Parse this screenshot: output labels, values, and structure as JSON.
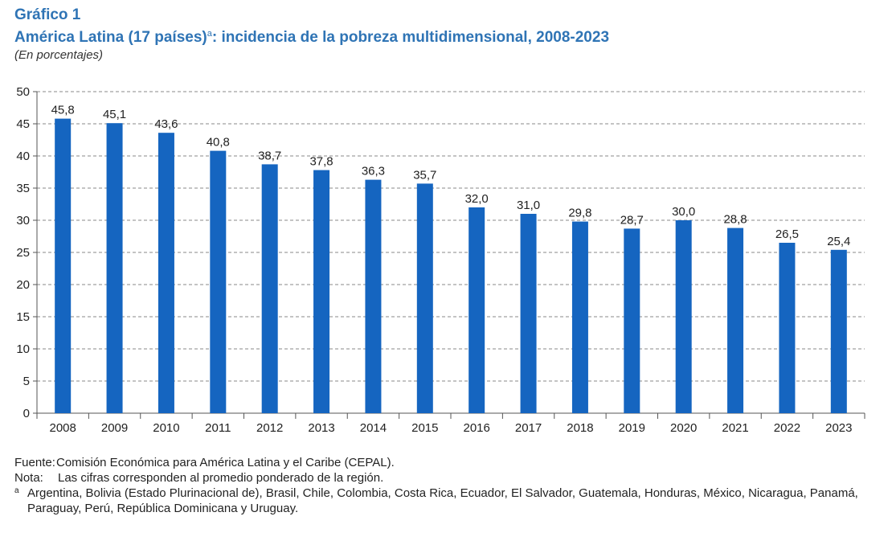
{
  "header": {
    "figure_number": "Gráfico 1",
    "title_main": "América Latina (17 países)",
    "title_sup": "a",
    "title_rest": ": incidencia de la pobreza multidimensional, 2008-2023",
    "subtitle": "(En porcentajes)"
  },
  "chart_data": {
    "type": "bar",
    "categories": [
      "2008",
      "2009",
      "2010",
      "2011",
      "2012",
      "2013",
      "2014",
      "2015",
      "2016",
      "2017",
      "2018",
      "2019",
      "2020",
      "2021",
      "2022",
      "2023"
    ],
    "values": [
      45.8,
      45.1,
      43.6,
      40.8,
      38.7,
      37.8,
      36.3,
      35.7,
      32.0,
      31.0,
      29.8,
      28.7,
      30.0,
      28.8,
      26.5,
      25.4
    ],
    "value_labels": [
      "45,8",
      "45,1",
      "43,6",
      "40,8",
      "38,7",
      "37,8",
      "36,3",
      "35,7",
      "32,0",
      "31,0",
      "29,8",
      "28,7",
      "30,0",
      "28,8",
      "26,5",
      "25,4"
    ],
    "ylim": [
      0,
      50
    ],
    "yticks": [
      0,
      5,
      10,
      15,
      20,
      25,
      30,
      35,
      40,
      45,
      50
    ],
    "grid": "dashed-horizontal",
    "bar_color": "#1565c0"
  },
  "notes": {
    "fuente_label": "Fuente:",
    "fuente_text": "Comisión Económica para América Latina y el Caribe (CEPAL).",
    "nota_label": "Nota:",
    "nota_text": "Las cifras corresponden al promedio ponderado de la región.",
    "a_label": "a",
    "a_text": "Argentina, Bolivia (Estado Plurinacional de), Brasil, Chile, Colombia, Costa Rica, Ecuador, El Salvador, Guatemala, Honduras, México, Nicaragua, Panamá, Paraguay, Perú, República Dominicana y Uruguay."
  }
}
